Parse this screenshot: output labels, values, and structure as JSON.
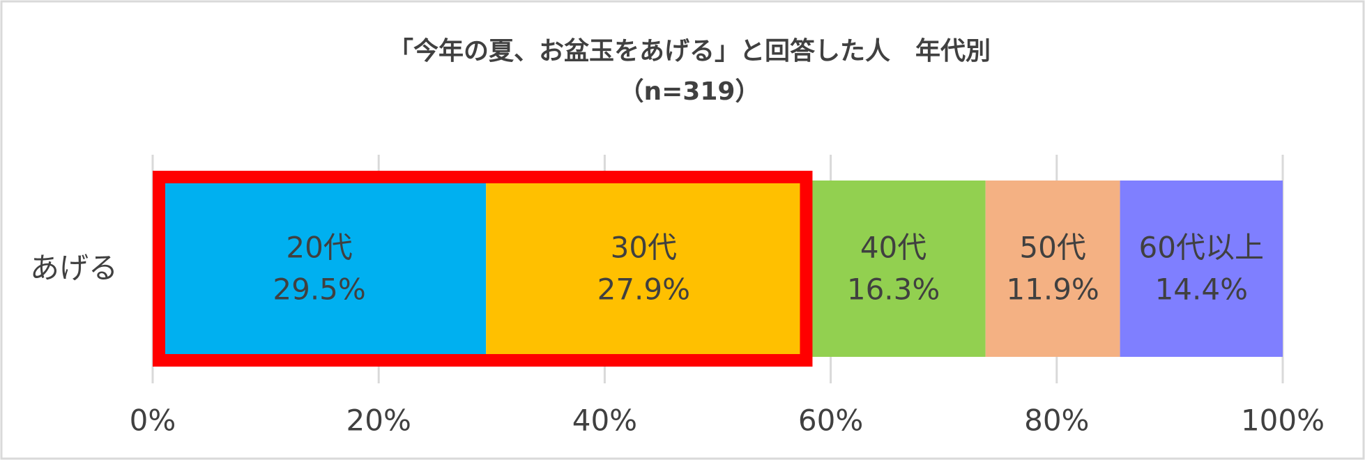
{
  "chart_data": {
    "type": "stacked-bar-horizontal",
    "title": "「今年の夏、お盆玉をあげる」と回答した人　年代別",
    "subtitle": "（n=319）",
    "categories": [
      "あげる"
    ],
    "series": [
      {
        "name": "20代",
        "color": "#00b0f0",
        "values": [
          29.5
        ],
        "value_labels": [
          "29.5%"
        ]
      },
      {
        "name": "30代",
        "color": "#ffc000",
        "values": [
          27.9
        ],
        "value_labels": [
          "27.9%"
        ]
      },
      {
        "name": "40代",
        "color": "#92d050",
        "values": [
          16.3
        ],
        "value_labels": [
          "16.3%"
        ]
      },
      {
        "name": "50代",
        "color": "#f4b183",
        "values": [
          11.9
        ],
        "value_labels": [
          "11.9%"
        ]
      },
      {
        "name": "60代以上",
        "color": "#7f7fff",
        "values": [
          14.4
        ],
        "value_labels": [
          "14.4%"
        ]
      }
    ],
    "xlim": [
      0,
      100
    ],
    "xticks": [
      {
        "value": 0,
        "label": "0%"
      },
      {
        "value": 20,
        "label": "20%"
      },
      {
        "value": 40,
        "label": "40%"
      },
      {
        "value": 60,
        "label": "60%"
      },
      {
        "value": 80,
        "label": "80%"
      },
      {
        "value": 100,
        "label": "100%"
      }
    ],
    "grid": true,
    "highlight_color": "#ff0000"
  }
}
